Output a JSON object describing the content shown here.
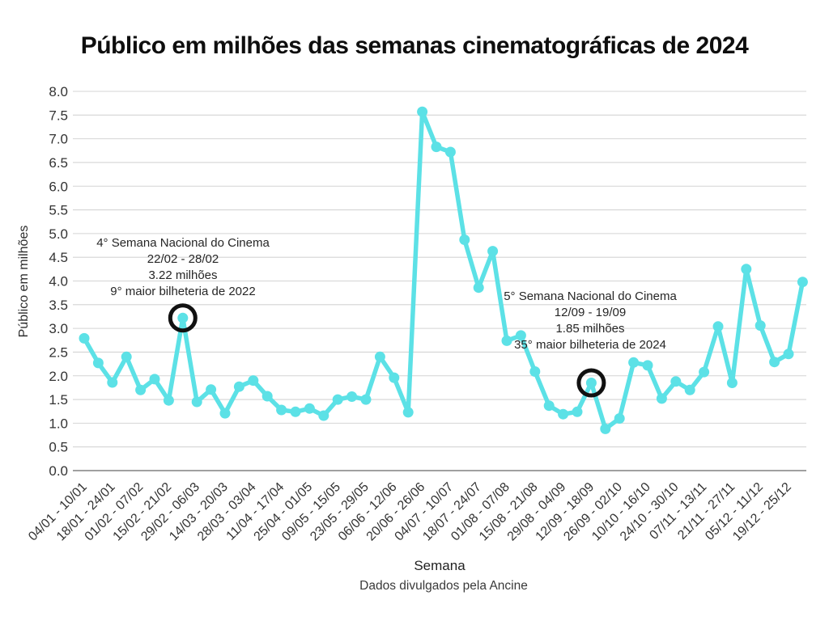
{
  "chart_data": {
    "type": "line",
    "title": "Público em milhões das semanas cinematográficas de 2024",
    "xlabel": "Semana",
    "ylabel": "Público em milhões",
    "caption": "Dados divulgados pela Ancine",
    "ylim": [
      0.0,
      8.0
    ],
    "ytick_step": 0.5,
    "grid": true,
    "legend": "none",
    "line_color": "#5ce1e6",
    "grid_color": "#d4d4d4",
    "axis_color": "#808080",
    "annotation_circle_color": "#111111",
    "x_tick_labels": [
      "04/01 - 10/01",
      "18/01 - 24/01",
      "01/02 - 07/02",
      "15/02 - 21/02",
      "29/02 - 06/03",
      "14/03 - 20/03",
      "28/03 - 03/04",
      "11/04 - 17/04",
      "25/04 - 01/05",
      "09/05 - 15/05",
      "23/05 - 29/05",
      "06/06 - 12/06",
      "20/06 - 26/06",
      "04/07 - 10/07",
      "18/07 - 24/07",
      "01/08 - 07/08",
      "15/08 - 21/08",
      "29/08 - 04/09",
      "12/09 - 18/09",
      "26/09 - 02/10",
      "10/10 - 16/10",
      "24/10 - 30/10",
      "07/11 - 13/11",
      "21/11 - 27/11",
      "05/12 - 11/12",
      "19/12 - 25/12"
    ],
    "x_tick_every": 2,
    "values": [
      2.79,
      2.27,
      1.86,
      2.4,
      1.7,
      1.93,
      1.48,
      3.22,
      1.45,
      1.71,
      1.21,
      1.77,
      1.9,
      1.57,
      1.28,
      1.24,
      1.31,
      1.16,
      1.5,
      1.56,
      1.5,
      2.4,
      1.96,
      1.23,
      7.57,
      6.83,
      6.72,
      4.87,
      3.86,
      4.63,
      2.74,
      2.85,
      2.09,
      1.37,
      1.19,
      1.24,
      1.85,
      0.88,
      1.1,
      2.28,
      2.22,
      1.52,
      1.88,
      1.7,
      2.08,
      3.04,
      1.85,
      4.25,
      3.06,
      2.29,
      2.46,
      3.98
    ],
    "annotations": [
      {
        "point_index": 7,
        "point_value": 3.22,
        "lines": [
          "4° Semana Nacional do Cinema",
          "22/02 - 28/02",
          "3.22 milhões",
          "9° maior bilheteria de 2022"
        ]
      },
      {
        "point_index": 36,
        "point_value": 1.85,
        "lines": [
          "5° Semana Nacional do Cinema",
          "12/09 - 19/09",
          "1.85 milhões",
          "35° maior bilheteria de 2024"
        ]
      }
    ]
  }
}
